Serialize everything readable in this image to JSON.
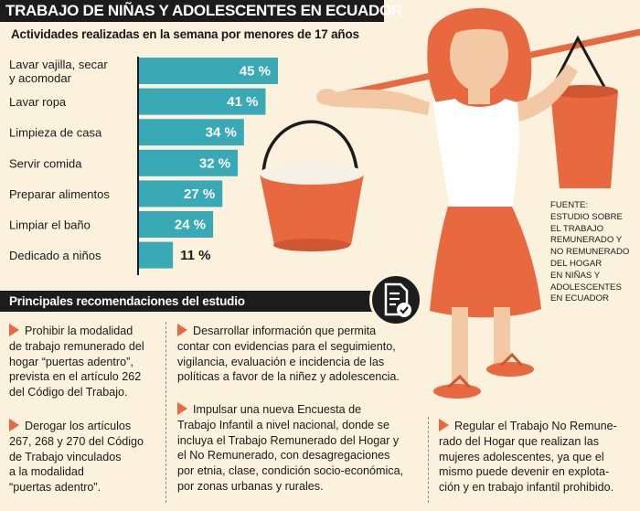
{
  "page_title": "TRABAJO DE NIÑAS Y ADOLESCENTES EN ECUADOR",
  "chart_data": {
    "type": "bar",
    "orientation": "horizontal",
    "title": "Actividades realizadas en la semana por menores de 17 años",
    "categories": [
      [
        "Lavar vajilla, secar",
        "y acomodar"
      ],
      [
        "Lavar ropa"
      ],
      [
        "Limpieza de casa"
      ],
      [
        "Servir comida"
      ],
      [
        "Preparar alimentos"
      ],
      [
        "Limpiar el baño"
      ],
      [
        "Dedicado a niños"
      ]
    ],
    "values": [
      45,
      41,
      34,
      32,
      27,
      24,
      11
    ],
    "value_labels": [
      "45 %",
      "41 %",
      "34 %",
      "32 %",
      "27 %",
      "24 %",
      "11 %"
    ],
    "xlim": [
      0,
      45
    ],
    "bar_color": "#3aa9b6",
    "grid": false
  },
  "recommendations": {
    "header": "Principales recomendaciones del estudio",
    "items": [
      [
        "Prohibir la modalidad",
        "de trabajo remunerado del",
        "hogar “puertas adentro”,",
        "prevista en el artículo 262",
        "del Código del Trabajo."
      ],
      [
        "Derogar los artículos",
        "267, 268 y 270 del Código",
        "de Trabajo vinculados",
        "a la modalidad",
        "“puertas adentro”."
      ],
      [
        "Desarrollar información que permita",
        "contar con evidencias para el seguimiento,",
        "vigilancia, evaluación e incidencia de las",
        "políticas a favor de la niñez y adolescencia."
      ],
      [
        "Impulsar una nueva Encuesta de",
        "Trabajo Infantil a nivel nacional, donde se",
        "incluya el Trabajo Remunerado del Hogar y",
        "el No Remunerado, con desagregaciones",
        "por etnia, clase, condición socio-económica,",
        "por zonas urbanas y rurales."
      ],
      [
        "Regular el Trabajo No Remune-",
        "rado del Hogar que realizan las",
        "mujeres adolescentes, ya que el",
        "mismo puede devenir en explota-",
        "ción y en trabajo infantil prohibido."
      ]
    ]
  },
  "source": [
    "FUENTE:",
    "ESTUDIO SOBRE",
    "EL TRABAJO",
    "REMUNERADO Y",
    "NO REMUNERADO",
    "DEL HOGAR",
    "EN NIÑAS Y",
    "ADOLESCENTES",
    "EN ECUADOR"
  ],
  "colors": {
    "background": "#fbf1dc",
    "accent_orange": "#e8683f",
    "bar": "#3aa9b6",
    "dark": "#1c1c1c"
  },
  "icons": {
    "badge": "document-check-icon",
    "bullet": "triangle-bullet-icon"
  }
}
